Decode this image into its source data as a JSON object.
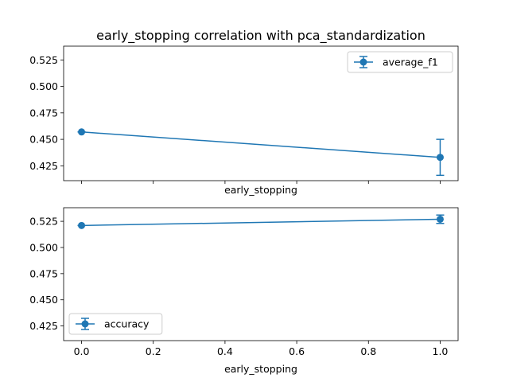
{
  "chart_data": [
    {
      "type": "line",
      "title": "early_stopping correlation with pca_standardization",
      "xlabel": "early_stopping",
      "ylabel": "",
      "xlim": [
        -0.05,
        1.05
      ],
      "ylim": [
        0.411,
        0.538
      ],
      "yticks": [
        "0.425",
        "0.450",
        "0.475",
        "0.500",
        "0.525"
      ],
      "xtick_labels_visible": false,
      "legend_position": "top-right",
      "grid": false,
      "series": [
        {
          "name": "average_f1",
          "color": "#1f77b4",
          "x": [
            0.0,
            1.0
          ],
          "y": [
            0.457,
            0.433
          ],
          "yerr": [
            0.0,
            0.017
          ]
        }
      ]
    },
    {
      "type": "line",
      "title": "",
      "xlabel": "early_stopping",
      "ylabel": "",
      "xlim": [
        -0.05,
        1.05
      ],
      "ylim": [
        0.411,
        0.538
      ],
      "xticks": [
        "0.0",
        "0.2",
        "0.4",
        "0.6",
        "0.8",
        "1.0"
      ],
      "yticks": [
        "0.425",
        "0.450",
        "0.475",
        "0.500",
        "0.525"
      ],
      "legend_position": "bottom-left",
      "grid": false,
      "series": [
        {
          "name": "accuracy",
          "color": "#1f77b4",
          "x": [
            0.0,
            1.0
          ],
          "y": [
            0.521,
            0.527
          ],
          "yerr": [
            0.0,
            0.004
          ]
        }
      ]
    }
  ]
}
